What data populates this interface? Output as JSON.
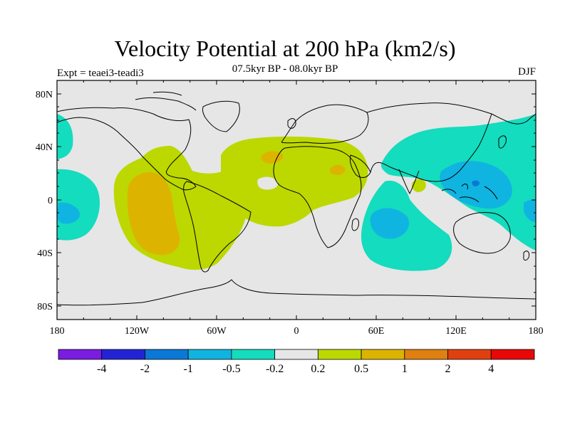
{
  "title": "Velocity Potential at 200 hPa (km2/s)",
  "subtitle": "07.5kyr BP - 08.0kyr BP",
  "left_label": "Expt = teaei3-teadi3",
  "right_label": "DJF",
  "lat_ticks": [
    "80N",
    "40N",
    "0",
    "40S",
    "80S"
  ],
  "lon_ticks": [
    "180",
    "120W",
    "60W",
    "0",
    "60E",
    "120E",
    "180"
  ],
  "colorbar": {
    "colors": [
      "#7a1de0",
      "#2323d6",
      "#0a78d6",
      "#10b4e0",
      "#14dcbe",
      "#e6e6e6",
      "#bcd800",
      "#dcb400",
      "#e08010",
      "#e04010",
      "#e80808"
    ],
    "labels": [
      "-4",
      "-2",
      "-1",
      "-0.5",
      "-0.2",
      "0.2",
      "0.5",
      "1",
      "2",
      "4"
    ]
  },
  "colors": {
    "background": "#e6e6e6",
    "coast": "#000000"
  }
}
